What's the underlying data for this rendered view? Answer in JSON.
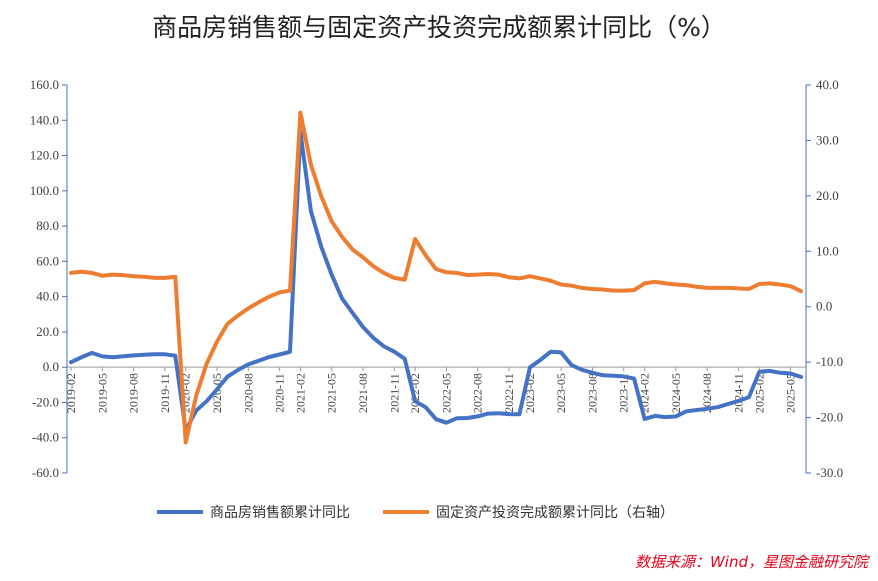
{
  "chart_data": {
    "type": "line",
    "title": "商品房销售额与固定资产投资完成额累计同比（%）",
    "source": "数据来源：Wind，星图金融研究院",
    "x": [
      "2019-02",
      "2019-03",
      "2019-04",
      "2019-05",
      "2019-06",
      "2019-07",
      "2019-08",
      "2019-09",
      "2019-10",
      "2019-11",
      "2019-12",
      "2020-02",
      "2020-03",
      "2020-04",
      "2020-05",
      "2020-06",
      "2020-07",
      "2020-08",
      "2020-09",
      "2020-10",
      "2020-11",
      "2020-12",
      "2021-02",
      "2021-03",
      "2021-04",
      "2021-05",
      "2021-06",
      "2021-07",
      "2021-08",
      "2021-09",
      "2021-10",
      "2021-11",
      "2021-12",
      "2022-02",
      "2022-03",
      "2022-04",
      "2022-05",
      "2022-06",
      "2022-07",
      "2022-08",
      "2022-09",
      "2022-10",
      "2022-11",
      "2022-12",
      "2023-02",
      "2023-03",
      "2023-04",
      "2023-05",
      "2023-06",
      "2023-07",
      "2023-08",
      "2023-09",
      "2023-10",
      "2023-11",
      "2023-12",
      "2024-02",
      "2024-03",
      "2024-04",
      "2024-05",
      "2024-06",
      "2024-07",
      "2024-08",
      "2024-09",
      "2024-10",
      "2024-11",
      "2024-12",
      "2025-02",
      "2025-03",
      "2025-04",
      "2025-05",
      "2025-06"
    ],
    "xtick_labels": [
      "2019-02",
      "2019-05",
      "2019-08",
      "2019-11",
      "2020-02",
      "2020-05",
      "2020-08",
      "2020-11",
      "2021-02",
      "2021-05",
      "2021-08",
      "2021-11",
      "2022-02",
      "2022-05",
      "2022-08",
      "2022-11",
      "2023-02",
      "2023-05",
      "2023-08",
      "2023-11",
      "2024-02",
      "2024-05",
      "2024-08",
      "2024-11",
      "2025-02",
      "2025-05"
    ],
    "y_left": {
      "ylim": [
        -60,
        160
      ],
      "ticks": [
        "160.0",
        "140.0",
        "120.0",
        "100.0",
        "80.0",
        "60.0",
        "40.0",
        "20.0",
        "0.0",
        "-20.0",
        "-40.0",
        "-60.0"
      ]
    },
    "y_right": {
      "ylim": [
        -30,
        40
      ],
      "ticks": [
        "40.0",
        "30.0",
        "20.0",
        "10.0",
        "0.0",
        "-10.0",
        "-20.0",
        "-30.0"
      ]
    },
    "series": [
      {
        "name": "商品房销售额累计同比",
        "axis": "left",
        "color": "#4472c4",
        "values": [
          2.8,
          5.6,
          8.1,
          6.1,
          5.6,
          6.2,
          6.7,
          7.1,
          7.3,
          7.3,
          6.5,
          -35.9,
          -24.7,
          -19.3,
          -12.6,
          -5.4,
          -1.6,
          1.6,
          3.7,
          5.8,
          7.2,
          8.7,
          133.4,
          88.5,
          68.2,
          52.4,
          38.9,
          30.7,
          22.8,
          16.6,
          11.8,
          8.8,
          4.8,
          -19.3,
          -22.7,
          -29.5,
          -31.5,
          -28.9,
          -28.8,
          -27.9,
          -26.3,
          -26.1,
          -26.6,
          -26.7,
          -0.1,
          4.1,
          8.8,
          8.4,
          1.1,
          -1.5,
          -3.2,
          -4.6,
          -4.9,
          -5.2,
          -6.5,
          -29.3,
          -27.6,
          -28.3,
          -27.9,
          -25.0,
          -24.3,
          -23.6,
          -22.7,
          -20.9,
          -19.2,
          -17.1,
          -2.6,
          -2.1,
          -3.2,
          -3.6,
          -5.5
        ]
      },
      {
        "name": "固定资产投资完成额累计同比（右轴）",
        "axis": "right",
        "color": "#ed7d31",
        "values": [
          6.1,
          6.3,
          6.1,
          5.6,
          5.8,
          5.7,
          5.5,
          5.4,
          5.2,
          5.2,
          5.4,
          -24.5,
          -16.1,
          -10.3,
          -6.3,
          -3.1,
          -1.6,
          -0.3,
          0.8,
          1.8,
          2.6,
          2.9,
          35.0,
          25.6,
          19.9,
          15.4,
          12.6,
          10.3,
          8.9,
          7.3,
          6.1,
          5.2,
          4.9,
          12.2,
          9.3,
          6.8,
          6.2,
          6.1,
          5.7,
          5.8,
          5.9,
          5.8,
          5.3,
          5.1,
          5.5,
          5.1,
          4.7,
          4.0,
          3.8,
          3.4,
          3.2,
          3.1,
          2.9,
          2.9,
          3.0,
          4.2,
          4.5,
          4.2,
          4.0,
          3.9,
          3.6,
          3.4,
          3.4,
          3.4,
          3.3,
          3.2,
          4.1,
          4.2,
          4.0,
          3.7,
          2.8
        ]
      }
    ]
  }
}
